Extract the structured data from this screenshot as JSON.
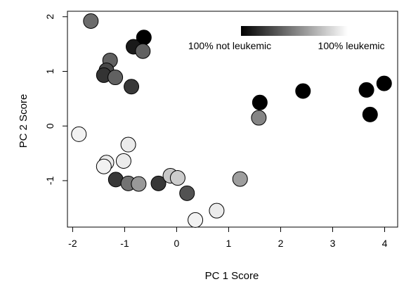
{
  "chart_data": {
    "type": "scatter",
    "title": "",
    "xlabel": "PC 1 Score",
    "ylabel": "PC 2 Score",
    "xlim": [
      -2.1,
      4.25
    ],
    "ylim": [
      -1.85,
      2.1
    ],
    "xticks": [
      -2,
      -1,
      0,
      1,
      2,
      3,
      4
    ],
    "yticks": [
      -1,
      0,
      1,
      2
    ],
    "grid": false,
    "legend": {
      "type": "color-gradient",
      "placement": "top-right",
      "low_label": "100% not leukemic",
      "high_label": "100% leukemic",
      "low_color": "#000000",
      "high_color": "#ffffff"
    },
    "value_meaning": "shade fraction: 0 = 100% not leukemic (black), 1 = 100% leukemic (white)",
    "points": [
      {
        "x": -1.65,
        "y": 1.92,
        "shade": 0.42
      },
      {
        "x": -0.63,
        "y": 1.62,
        "shade": 0.0
      },
      {
        "x": -0.83,
        "y": 1.45,
        "shade": 0.1
      },
      {
        "x": -0.65,
        "y": 1.37,
        "shade": 0.38
      },
      {
        "x": -1.28,
        "y": 1.2,
        "shade": 0.38
      },
      {
        "x": -1.35,
        "y": 1.02,
        "shade": 0.28
      },
      {
        "x": -1.4,
        "y": 0.93,
        "shade": 0.2
      },
      {
        "x": -1.18,
        "y": 0.89,
        "shade": 0.38
      },
      {
        "x": -0.87,
        "y": 0.72,
        "shade": 0.22
      },
      {
        "x": 1.6,
        "y": 0.43,
        "shade": 0.0
      },
      {
        "x": 1.58,
        "y": 0.15,
        "shade": 0.52
      },
      {
        "x": 2.43,
        "y": 0.64,
        "shade": 0.0
      },
      {
        "x": 3.65,
        "y": 0.66,
        "shade": 0.0
      },
      {
        "x": 3.99,
        "y": 0.78,
        "shade": 0.0
      },
      {
        "x": 3.72,
        "y": 0.21,
        "shade": 0.0
      },
      {
        "x": -1.88,
        "y": -0.15,
        "shade": 0.95
      },
      {
        "x": -0.93,
        "y": -0.34,
        "shade": 0.92
      },
      {
        "x": -1.02,
        "y": -0.64,
        "shade": 0.92
      },
      {
        "x": -1.35,
        "y": -0.67,
        "shade": 0.92
      },
      {
        "x": -1.4,
        "y": -0.74,
        "shade": 0.95
      },
      {
        "x": -1.17,
        "y": -0.98,
        "shade": 0.22
      },
      {
        "x": -0.93,
        "y": -1.05,
        "shade": 0.45
      },
      {
        "x": -0.73,
        "y": -1.06,
        "shade": 0.6
      },
      {
        "x": -0.35,
        "y": -1.05,
        "shade": 0.22
      },
      {
        "x": -0.12,
        "y": -0.91,
        "shade": 0.78
      },
      {
        "x": 0.02,
        "y": -0.95,
        "shade": 0.8
      },
      {
        "x": 0.2,
        "y": -1.23,
        "shade": 0.32
      },
      {
        "x": 0.36,
        "y": -1.72,
        "shade": 0.95
      },
      {
        "x": 0.77,
        "y": -1.55,
        "shade": 0.92
      },
      {
        "x": 1.22,
        "y": -0.97,
        "shade": 0.62
      }
    ]
  }
}
